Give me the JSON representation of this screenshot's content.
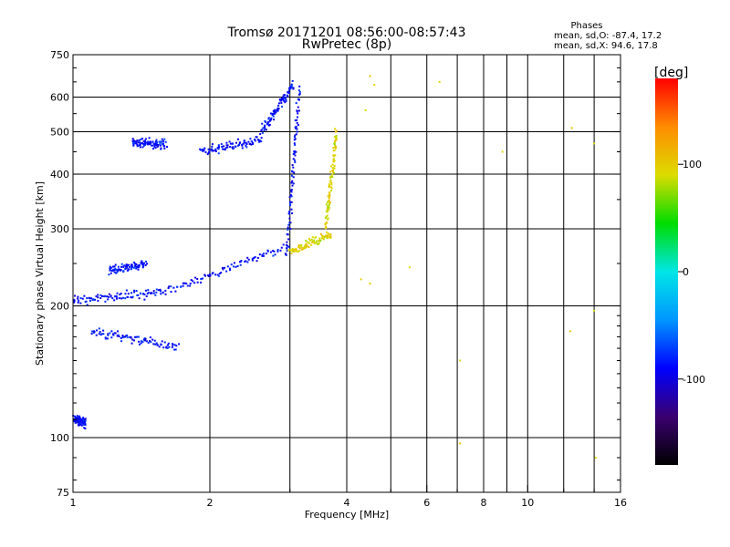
{
  "chart_data": {
    "type": "scatter",
    "title": "Tromsø 20171201 08:56:00-08:57:43",
    "subtitle": "RwPretec (8p)",
    "xlabel": "Frequency [MHz]",
    "ylabel": "Stationary phase Virtual Height [km]",
    "x_scale": "log",
    "y_scale": "log",
    "xlim": [
      1,
      16
    ],
    "ylim": [
      75,
      750
    ],
    "x_ticks": [
      1,
      2,
      4,
      6,
      8,
      10,
      16
    ],
    "x_tick_labels": [
      "1",
      "2",
      "4",
      "6",
      "8",
      "10",
      "16"
    ],
    "x_minor_ticks": [
      3,
      5,
      7,
      9,
      12,
      14
    ],
    "y_ticks": [
      75,
      100,
      200,
      300,
      400,
      500,
      600,
      750
    ],
    "y_tick_labels": [
      "75",
      "100",
      "200",
      "300",
      "400",
      "500",
      "600",
      "750"
    ],
    "y_minor_ticks": [
      80,
      90,
      110,
      120,
      130,
      140,
      150,
      160,
      170,
      180,
      190,
      250,
      350,
      450,
      550,
      650,
      700
    ],
    "grid": true,
    "colorbar": {
      "label": "[deg]",
      "range": [
        -180,
        180
      ],
      "ticks": [
        100,
        0,
        -100
      ],
      "tick_labels": [
        "100",
        "0",
        "-100"
      ],
      "colormap": [
        "#000000",
        "#3a0070",
        "#0000ff",
        "#0096ff",
        "#00e6e6",
        "#00dc00",
        "#dcdc00",
        "#ff8c00",
        "#ff0000"
      ]
    },
    "legend_text": {
      "heading": "Phases",
      "line1": "mean, sd,O: -87.4, 17.2",
      "line2": "mean, sd,X:  94.6, 17.8"
    },
    "series": [
      {
        "name": "O",
        "traces": [
          {
            "f_start": 1.0,
            "f_end": 1.07,
            "h": [
              110,
              108
            ]
          },
          {
            "f_start": 1.0,
            "f_end": 1.55,
            "h": [
              205,
              215
            ]
          },
          {
            "f_start": 1.1,
            "f_end": 1.7,
            "h": [
              175,
              160
            ]
          },
          {
            "f_start": 1.2,
            "f_end": 1.45,
            "h": [
              240,
              250
            ]
          },
          {
            "f_start": 1.35,
            "f_end": 1.6,
            "h": [
              470,
              470
            ]
          },
          {
            "f_start": 1.55,
            "f_end": 2.9,
            "h": [
              215,
              270
            ]
          },
          {
            "f_start": 1.9,
            "f_end": 2.6,
            "h": [
              450,
              480
            ]
          },
          {
            "f_start": 2.6,
            "f_end": 3.05,
            "h": [
              500,
              640
            ]
          },
          {
            "f_start": 2.95,
            "f_end": 3.15,
            "h": [
              260,
              630
            ]
          }
        ]
      },
      {
        "name": "X",
        "traces": [
          {
            "f_start": 3.0,
            "f_end": 3.7,
            "h": [
              265,
              290
            ]
          },
          {
            "f_start": 3.6,
            "f_end": 3.8,
            "h": [
              300,
              500
            ]
          }
        ],
        "points": [
          [
            4.5,
            670
          ],
          [
            4.6,
            640
          ],
          [
            4.4,
            560
          ],
          [
            4.3,
            230
          ],
          [
            4.5,
            225
          ],
          [
            5.5,
            245
          ],
          [
            6.4,
            650
          ],
          [
            7.1,
            97
          ],
          [
            7.1,
            150
          ],
          [
            8.8,
            450
          ],
          [
            12.5,
            510
          ],
          [
            12.4,
            175
          ],
          [
            14.0,
            470
          ],
          [
            14.0,
            195
          ],
          [
            14.1,
            90
          ]
        ]
      }
    ]
  }
}
